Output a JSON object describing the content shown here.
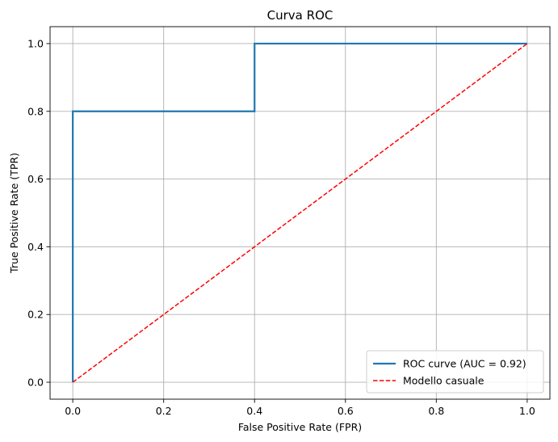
{
  "chart_data": {
    "type": "line",
    "title": "Curva ROC",
    "xlabel": "False Positive Rate (FPR)",
    "ylabel": "True Positive Rate (TPR)",
    "xlim": [
      -0.05,
      1.05
    ],
    "ylim": [
      -0.05,
      1.05
    ],
    "xticks": [
      "0.0",
      "0.2",
      "0.4",
      "0.6",
      "0.8",
      "1.0"
    ],
    "yticks": [
      "0.0",
      "0.2",
      "0.4",
      "0.6",
      "0.8",
      "1.0"
    ],
    "grid": true,
    "legend_position": "lower-right",
    "series": [
      {
        "name": "ROC curve (AUC = 0.92)",
        "color": "#1f77b4",
        "style": "solid",
        "x": [
          0.0,
          0.0,
          0.4,
          0.4,
          1.0
        ],
        "y": [
          0.0,
          0.8,
          0.8,
          1.0,
          1.0
        ]
      },
      {
        "name": "Modello casuale",
        "color": "#ff0000",
        "style": "dashed",
        "x": [
          0.0,
          1.0
        ],
        "y": [
          0.0,
          1.0
        ]
      }
    ]
  }
}
